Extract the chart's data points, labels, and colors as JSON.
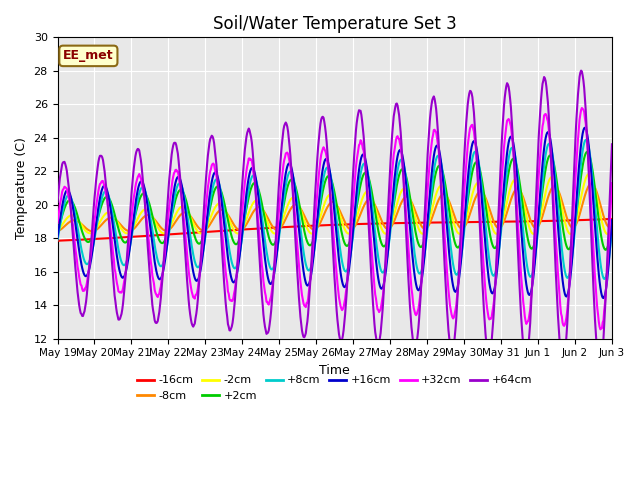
{
  "title": "Soil/Water Temperature Set 3",
  "xlabel": "Time",
  "ylabel": "Temperature (C)",
  "ylim": [
    12,
    30
  ],
  "annotation": "EE_met",
  "series": {
    "-16cm": {
      "color": "#ff0000",
      "lw": 1.5
    },
    "-8cm": {
      "color": "#ff8800",
      "lw": 1.5
    },
    "-2cm": {
      "color": "#ffff00",
      "lw": 1.5
    },
    "+2cm": {
      "color": "#00cc00",
      "lw": 1.5
    },
    "+8cm": {
      "color": "#00cccc",
      "lw": 1.5
    },
    "+16cm": {
      "color": "#0000cc",
      "lw": 1.5
    },
    "+32cm": {
      "color": "#ff00ff",
      "lw": 1.5
    },
    "+64cm": {
      "color": "#9900cc",
      "lw": 1.5
    }
  },
  "xtick_labels": [
    "May 19",
    "May 20",
    "May 21",
    "May 22",
    "May 23",
    "May 24",
    "May 25",
    "May 26",
    "May 27",
    "May 28",
    "May 29",
    "May 30",
    "May 31",
    "Jun 1",
    "Jun 2",
    "Jun 3"
  ],
  "ytick_labels": [
    12,
    14,
    16,
    18,
    20,
    22,
    24,
    26,
    28,
    30
  ]
}
